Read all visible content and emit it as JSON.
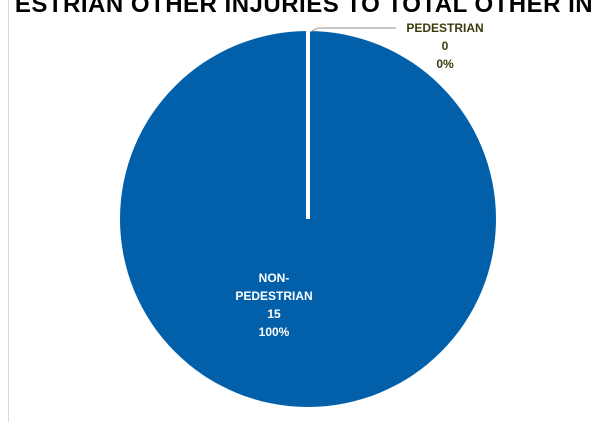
{
  "chart_data": {
    "type": "pie",
    "title": "ESTRIAN OTHER INJURIES TO TOTAL OTHER IN",
    "slices": [
      {
        "name": "PEDESTRIAN",
        "value": 0,
        "percent": "0%"
      },
      {
        "name": "NON-PEDESTRIAN",
        "value": 15,
        "percent": "100%"
      }
    ],
    "colors": {
      "non_pedestrian": "#0260AA",
      "pedestrian": "#ffffff",
      "label_dark": "#3b3b10",
      "label_light": "#ffffff",
      "leader_line": "#a6a6a6"
    },
    "labels": {
      "pedestrian": [
        "PEDESTRIAN",
        "0",
        "0%"
      ],
      "non_pedestrian": [
        "NON-",
        "PEDESTRIAN",
        "15",
        "100%"
      ]
    }
  }
}
